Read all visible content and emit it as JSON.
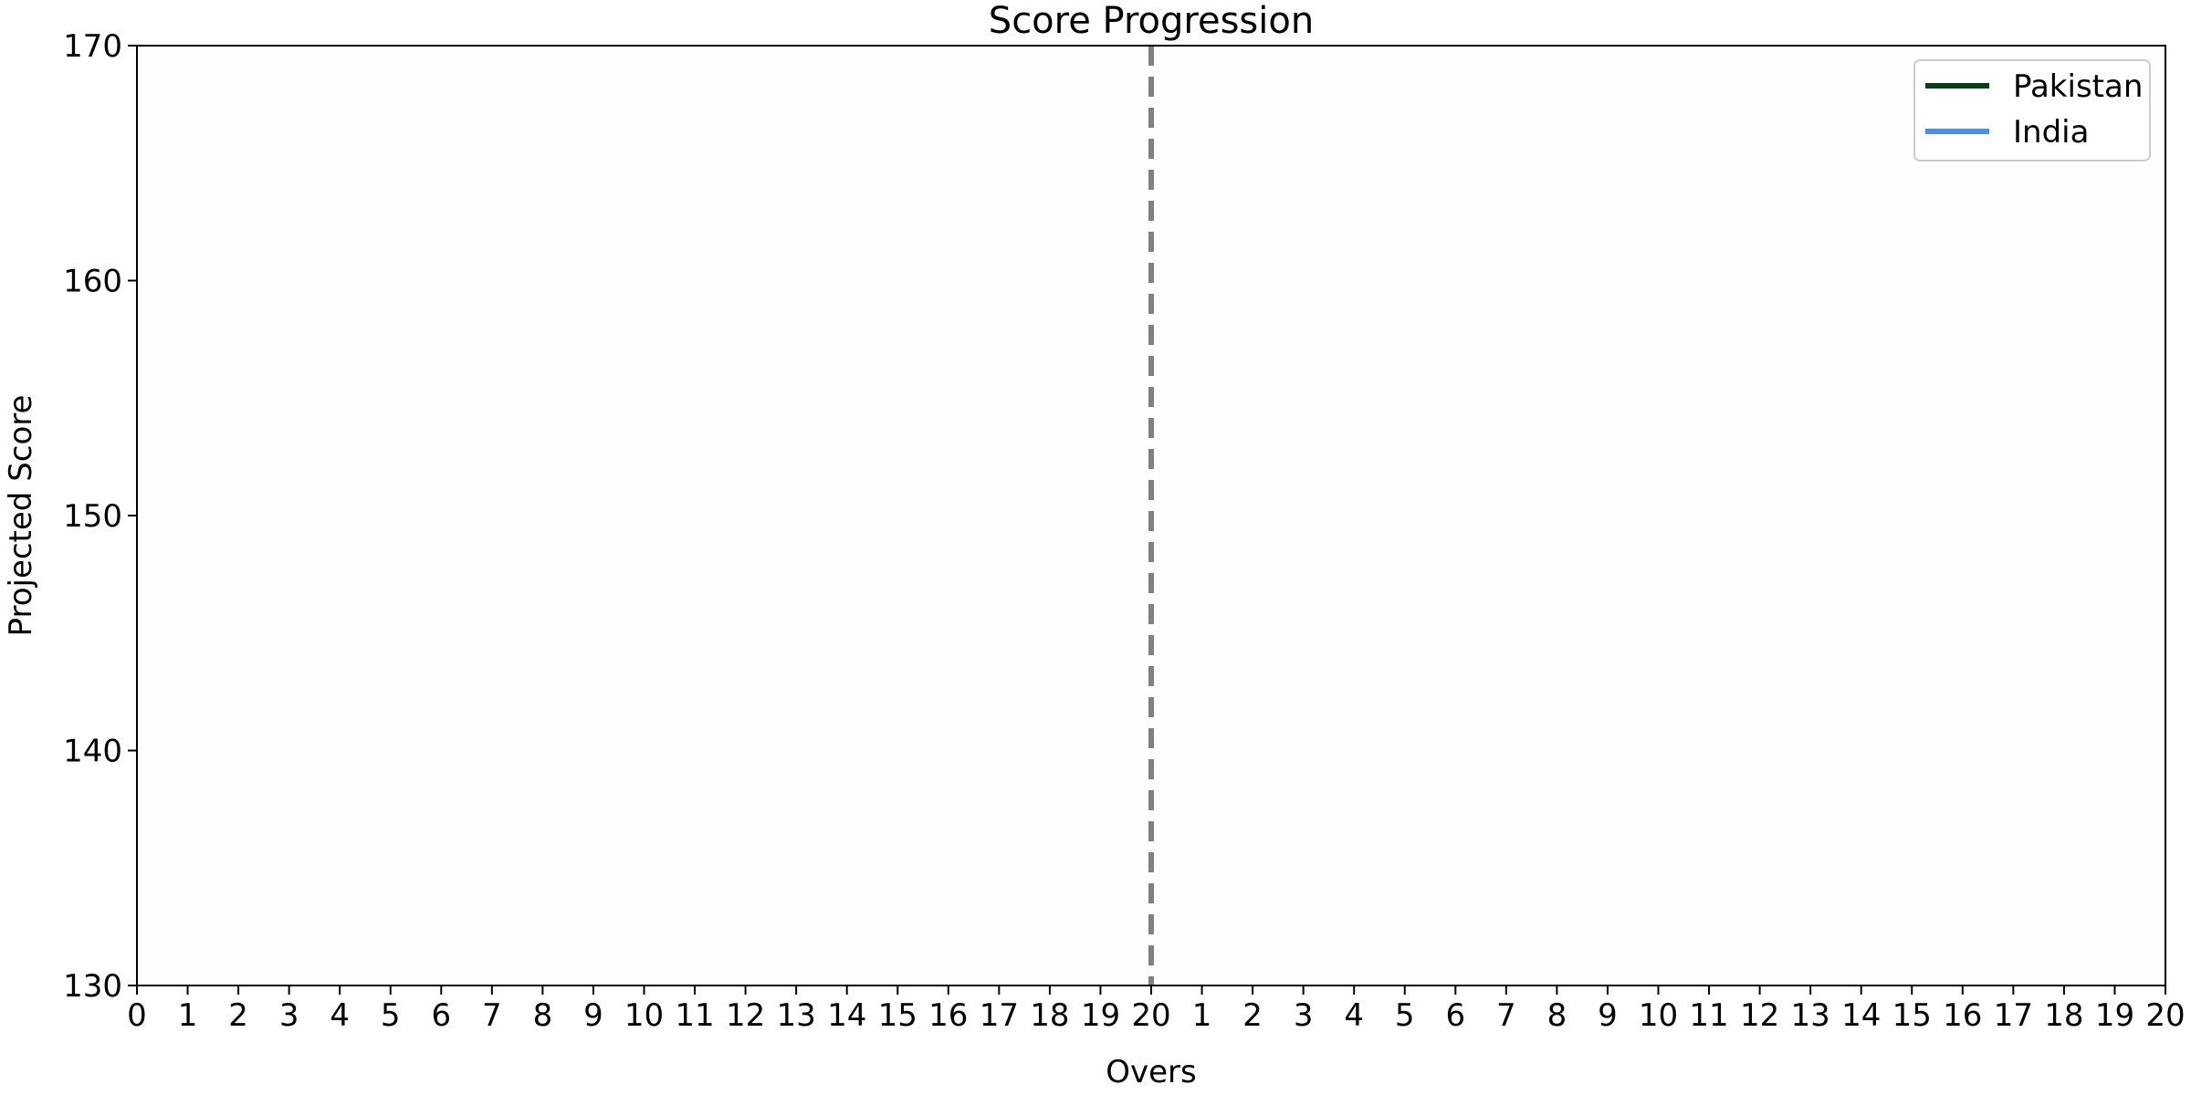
{
  "chart_data": {
    "type": "line",
    "title": "Score Progression",
    "xlabel": "Overs",
    "ylabel": "Projected Score",
    "ylim": [
      130,
      170
    ],
    "y_ticks": [
      130,
      140,
      150,
      160,
      170
    ],
    "x_tick_labels": [
      "0",
      "1",
      "2",
      "3",
      "4",
      "5",
      "6",
      "7",
      "8",
      "9",
      "10",
      "11",
      "12",
      "13",
      "14",
      "15",
      "16",
      "17",
      "18",
      "19",
      "20",
      "1",
      "2",
      "3",
      "4",
      "5",
      "6",
      "7",
      "8",
      "9",
      "10",
      "11",
      "12",
      "13",
      "14",
      "15",
      "16",
      "17",
      "18",
      "19",
      "20"
    ],
    "innings_break_after_over": 20,
    "grid": false,
    "legend_position": "top-right",
    "series": [
      {
        "name": "Pakistan",
        "color": "#0b3d1a",
        "values": []
      },
      {
        "name": "India",
        "color": "#4a8fe7",
        "values": []
      }
    ],
    "divider_color": "#808080"
  }
}
